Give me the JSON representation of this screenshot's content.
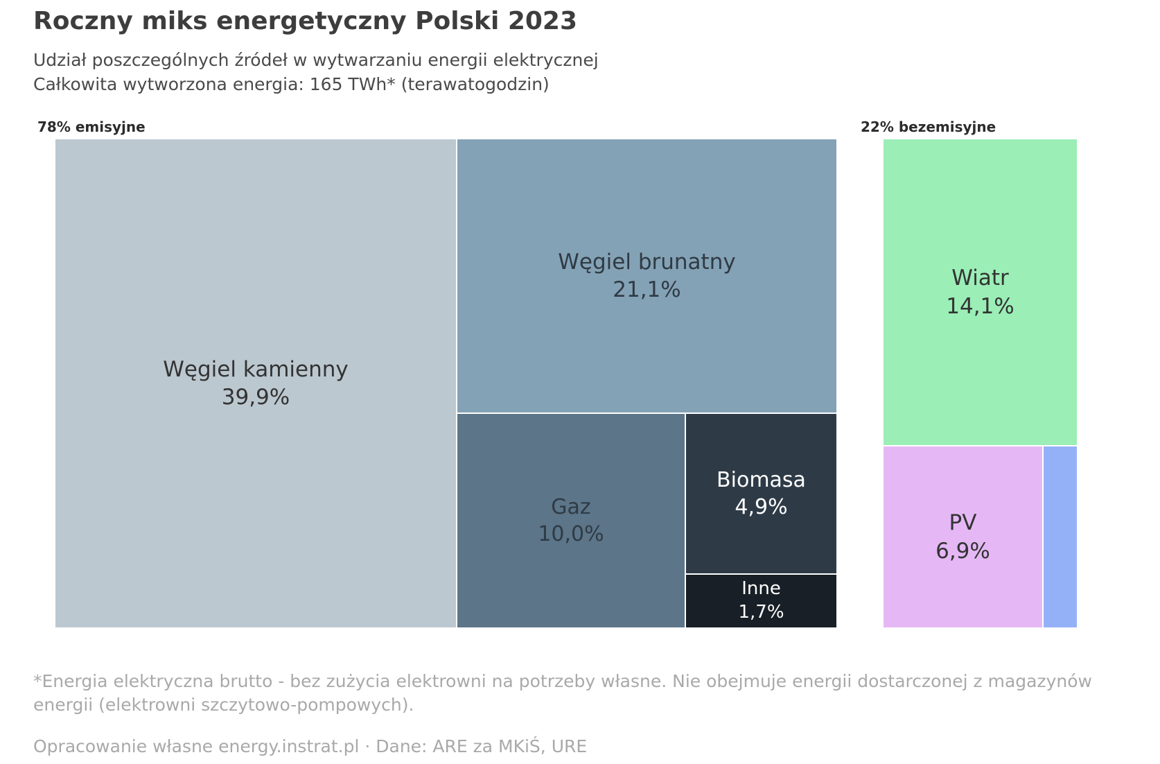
{
  "title": "Roczny miks energetyczny Polski 2023",
  "subtitle_line1": "Udział poszczególnych źródeł w wytwarzaniu energii elektrycznej",
  "subtitle_line2": "Całkowita wytworzona energia: 165 TWh* (terawatogodzin)",
  "footnote": "*Energia elektryczna brutto - bez zużycia elektrowni na potrzeby własne. Nie obejmuje energii dostarczonej z magazynów energii (elektrowni szczytowo-pompowych).",
  "credit": "Opracowanie własne energy.instrat.pl · Dane: ARE za MKiŚ, URE",
  "chart_data": {
    "type": "treemap",
    "groups": [
      {
        "label": "78% emisyjne",
        "share": 78,
        "items": [
          {
            "name": "Węgiel kamienny",
            "value": 39.9,
            "value_label": "39,9%",
            "color": "#bcc8d0",
            "text_color": "#333333"
          },
          {
            "name": "Węgiel brunatny",
            "value": 21.1,
            "value_label": "21,1%",
            "color": "#84a2b6",
            "text_color": "#2f3a44"
          },
          {
            "name": "Gaz",
            "value": 10.0,
            "value_label": "10,0%",
            "color": "#5c7588",
            "text_color": "#2e3b46"
          },
          {
            "name": "Biomasa",
            "value": 4.9,
            "value_label": "4,9%",
            "color": "#2e3b47",
            "text_color": "#ffffff"
          },
          {
            "name": "Inne",
            "value": 1.7,
            "value_label": "1,7%",
            "color": "#181f26",
            "text_color": "#ffffff"
          }
        ]
      },
      {
        "label": "22% bezemisyjne",
        "share": 22,
        "items": [
          {
            "name": "Wiatr",
            "value": 14.1,
            "value_label": "14,1%",
            "color": "#9aeeb6",
            "text_color": "#333333"
          },
          {
            "name": "PV",
            "value": 6.9,
            "value_label": "6,9%",
            "color": "#e5b8f5",
            "text_color": "#333333"
          },
          {
            "name": "",
            "value_label": "",
            "color": "#94b1f8",
            "text_color": "#333333"
          }
        ]
      }
    ]
  }
}
